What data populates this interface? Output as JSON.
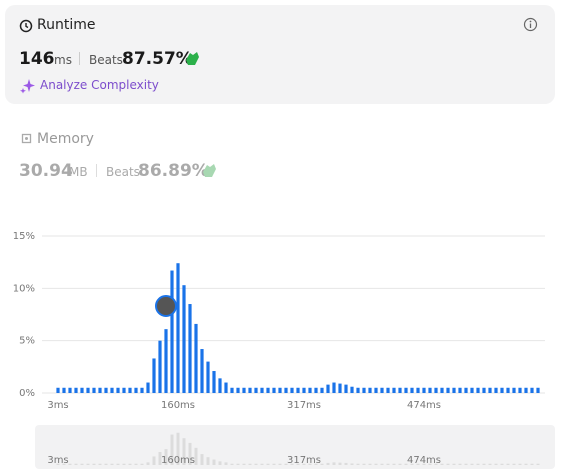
{
  "runtime": {
    "title": "Runtime",
    "value": "146",
    "unit": "ms",
    "beats_label": "Beats",
    "beats": "87.57%",
    "action": "Analyze Complexity"
  },
  "memory": {
    "title": "Memory",
    "value": "30.94",
    "unit": "MB",
    "beats_label": "Beats",
    "beats": "86.89%"
  },
  "chart_data": {
    "type": "bar",
    "categories": [
      "3ms",
      null,
      null,
      null,
      null,
      null,
      null,
      null,
      null,
      null,
      null,
      null,
      null,
      null,
      null,
      null,
      null,
      null,
      null,
      null,
      "160ms",
      null,
      null,
      null,
      null,
      null,
      null,
      null,
      null,
      null,
      null,
      null,
      null,
      null,
      null,
      null,
      null,
      null,
      null,
      null,
      null,
      "317ms",
      null,
      null,
      null,
      null,
      null,
      null,
      null,
      null,
      null,
      null,
      null,
      null,
      null,
      null,
      null,
      null,
      null,
      null,
      null,
      "474ms",
      null,
      null,
      null,
      null,
      null,
      null,
      null,
      null,
      null,
      null,
      null,
      null,
      null,
      null,
      null,
      null,
      null,
      null,
      null
    ],
    "values": [
      0.5,
      0.5,
      0.5,
      0.5,
      0.5,
      0.5,
      0.5,
      0.5,
      0.5,
      0.5,
      0.5,
      0.5,
      0.5,
      0.5,
      0.5,
      1.0,
      3.3,
      5.0,
      6.1,
      11.7,
      12.4,
      10.3,
      8.5,
      6.6,
      4.2,
      3.0,
      2.1,
      1.4,
      1.0,
      0.5,
      0.5,
      0.5,
      0.5,
      0.5,
      0.5,
      0.5,
      0.5,
      0.5,
      0.5,
      0.5,
      0.5,
      0.5,
      0.5,
      0.5,
      0.5,
      0.8,
      1.0,
      0.9,
      0.8,
      0.6,
      0.5,
      0.5,
      0.5,
      0.5,
      0.5,
      0.5,
      0.5,
      0.5,
      0.5,
      0.5,
      0.5,
      0.5,
      0.5,
      0.5,
      0.5,
      0.5,
      0.5,
      0.5,
      0.5,
      0.5,
      0.5,
      0.5,
      0.5,
      0.5,
      0.5,
      0.5,
      0.5,
      0.5,
      0.5,
      0.5,
      0.5
    ],
    "color": "#1a73e8",
    "ylim": [
      0,
      15
    ],
    "yticks": [
      {
        "value": 0,
        "label": "0%"
      },
      {
        "value": 5,
        "label": "5%"
      },
      {
        "value": 10,
        "label": "10%"
      },
      {
        "value": 15,
        "label": "15%"
      }
    ],
    "grid": true
  }
}
